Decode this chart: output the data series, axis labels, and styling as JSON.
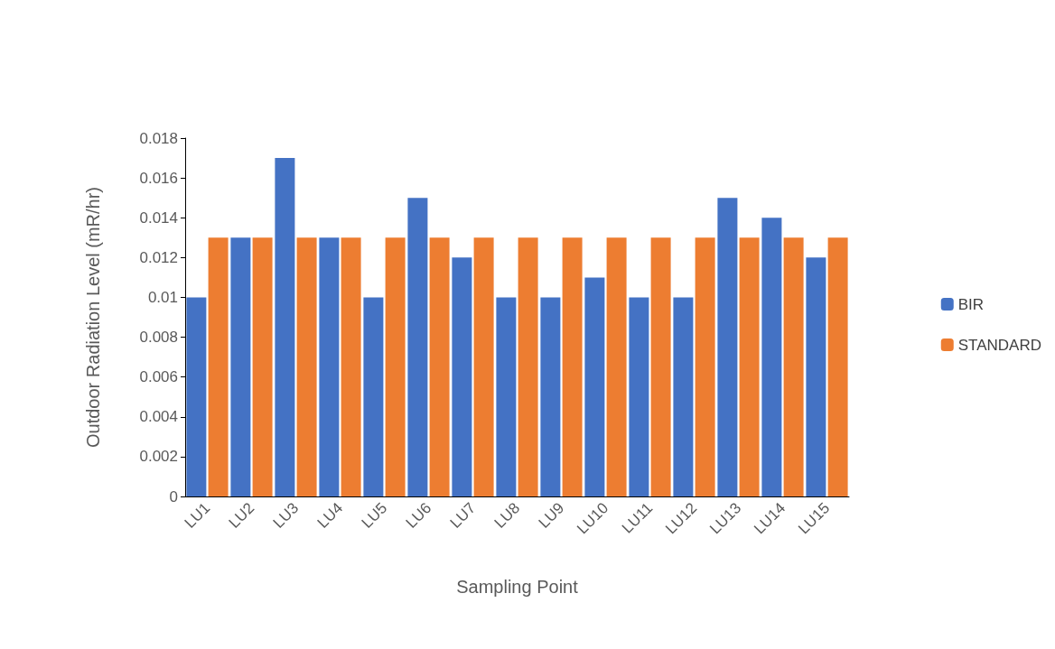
{
  "chart_data": {
    "type": "bar",
    "xlabel": "Sampling Point",
    "ylabel": "Outdoor Radiation Level (mR/hr)",
    "categories": [
      "LU1",
      "LU2",
      "LU3",
      "LU4",
      "LU5",
      "LU6",
      "LU7",
      "LU8",
      "LU9",
      "LU10",
      "LU11",
      "LU12",
      "LU13",
      "LU14",
      "LU15"
    ],
    "series": [
      {
        "name": "BIR",
        "color": "#4472c4",
        "values": [
          0.01,
          0.013,
          0.017,
          0.013,
          0.01,
          0.015,
          0.012,
          0.01,
          0.01,
          0.011,
          0.01,
          0.01,
          0.015,
          0.014,
          0.012
        ]
      },
      {
        "name": "STANDARD",
        "color": "#ed7d31",
        "values": [
          0.013,
          0.013,
          0.013,
          0.013,
          0.013,
          0.013,
          0.013,
          0.013,
          0.013,
          0.013,
          0.013,
          0.013,
          0.013,
          0.013,
          0.013
        ]
      }
    ],
    "ylim": [
      0,
      0.018
    ],
    "yticks": [
      0,
      0.002,
      0.004,
      0.006,
      0.008,
      0.01,
      0.012,
      0.014,
      0.016,
      0.018
    ],
    "grid": false,
    "legend": "right"
  }
}
